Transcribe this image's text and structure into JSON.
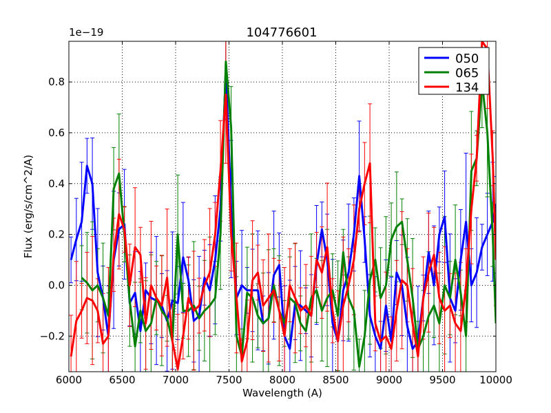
{
  "chart_data": {
    "type": "line",
    "title": "104776601",
    "xlabel": "Wavelength (A)",
    "ylabel": "Flux (erg/s/cm^2/A)",
    "offset_label": "1e−19",
    "xlim": [
      6000,
      10000
    ],
    "ylim": [
      -0.34,
      0.96
    ],
    "grid": true,
    "legend_position": "top-right",
    "x_ticks": [
      6000,
      6500,
      7000,
      7500,
      8000,
      8500,
      9000,
      9500,
      10000
    ],
    "x_tick_labels": [
      "6000",
      "6500",
      "7000",
      "7500",
      "8000",
      "8500",
      "9000",
      "9500",
      "10000"
    ],
    "y_ticks": [
      -0.2,
      0.0,
      0.2,
      0.4,
      0.6,
      0.8
    ],
    "y_tick_labels": [
      "−0.2",
      "0.0",
      "0.2",
      "0.4",
      "0.6",
      "0.8"
    ],
    "series": [
      {
        "name": "050",
        "color": "#0000ff",
        "x": [
          6020,
          6070,
          6120,
          6170,
          6220,
          6270,
          6320,
          6370,
          6420,
          6470,
          6520,
          6570,
          6620,
          6670,
          6720,
          6770,
          6820,
          6870,
          6920,
          6970,
          7020,
          7070,
          7120,
          7170,
          7220,
          7270,
          7320,
          7370,
          7420,
          7470,
          7520,
          7570,
          7620,
          7670,
          7720,
          7770,
          7820,
          7870,
          7920,
          7970,
          8020,
          8070,
          8120,
          8170,
          8220,
          8270,
          8320,
          8370,
          8420,
          8470,
          8520,
          8570,
          8620,
          8670,
          8720,
          8770,
          8820,
          8870,
          8920,
          8970,
          9020,
          9070,
          9120,
          9170,
          9220,
          9270,
          9320,
          9370,
          9420,
          9470,
          9520,
          9570,
          9620,
          9670,
          9720,
          9770,
          9820,
          9870,
          9920,
          9970,
          10000
        ],
        "values": [
          0.1,
          0.18,
          0.25,
          0.47,
          0.4,
          0.05,
          -0.05,
          -0.2,
          0.1,
          0.22,
          0.24,
          -0.07,
          -0.03,
          -0.18,
          -0.02,
          -0.05,
          -0.06,
          -0.08,
          -0.14,
          -0.06,
          -0.07,
          0.11,
          0.02,
          -0.14,
          -0.12,
          0.03,
          -0.02,
          0.1,
          0.3,
          0.85,
          0.3,
          -0.05,
          0.0,
          -0.02,
          -0.02,
          -0.02,
          -0.15,
          -0.13,
          0.04,
          0.08,
          -0.2,
          -0.25,
          -0.07,
          -0.08,
          -0.1,
          -0.12,
          0.08,
          0.22,
          0.1,
          -0.15,
          -0.22,
          -0.02,
          0.05,
          0.2,
          0.43,
          0.18,
          -0.12,
          -0.2,
          -0.25,
          -0.08,
          -0.22,
          0.05,
          0.0,
          -0.16,
          -0.25,
          -0.22,
          -0.05,
          0.13,
          0.0,
          0.2,
          0.27,
          -0.05,
          -0.1,
          0.1,
          0.25,
          0.0,
          0.05,
          0.15,
          0.2,
          0.25,
          0.32
        ]
      },
      {
        "name": "065",
        "color": "#008000",
        "x": [
          6120,
          6170,
          6220,
          6270,
          6320,
          6370,
          6420,
          6470,
          6520,
          6570,
          6620,
          6670,
          6720,
          6770,
          6820,
          6870,
          6920,
          6970,
          7020,
          7070,
          7120,
          7170,
          7220,
          7270,
          7320,
          7370,
          7420,
          7470,
          7520,
          7570,
          7620,
          7670,
          7720,
          7770,
          7820,
          7870,
          7920,
          7970,
          8020,
          8070,
          8120,
          8170,
          8220,
          8270,
          8320,
          8370,
          8420,
          8470,
          8520,
          8570,
          8620,
          8670,
          8720,
          8770,
          8820,
          8870,
          8920,
          8970,
          9020,
          9070,
          9120,
          9170,
          9220,
          9270,
          9320,
          9370,
          9420,
          9470,
          9520,
          9570,
          9620,
          9670,
          9720,
          9770,
          9820,
          9870,
          9920,
          9970,
          10000
        ],
        "values": [
          0.03,
          0.01,
          -0.02,
          0.0,
          -0.05,
          -0.12,
          0.38,
          0.44,
          0.2,
          -0.06,
          -0.24,
          -0.1,
          -0.18,
          -0.15,
          -0.05,
          -0.1,
          -0.13,
          -0.22,
          0.2,
          -0.1,
          -0.1,
          -0.08,
          -0.13,
          -0.1,
          -0.08,
          -0.05,
          0.2,
          0.88,
          0.62,
          -0.2,
          -0.28,
          -0.03,
          -0.05,
          -0.12,
          -0.15,
          -0.13,
          0.0,
          -0.1,
          -0.15,
          -0.05,
          -0.07,
          -0.15,
          -0.18,
          -0.05,
          -0.02,
          -0.1,
          -0.05,
          -0.02,
          -0.12,
          0.13,
          -0.05,
          -0.1,
          -0.32,
          -0.2,
          0.02,
          0.1,
          -0.05,
          0.0,
          0.18,
          0.23,
          0.25,
          0.1,
          -0.05,
          -0.25,
          -0.2,
          -0.12,
          -0.08,
          -0.15,
          0.0,
          -0.05,
          0.1,
          -0.03,
          -0.2,
          0.45,
          0.5,
          0.8,
          0.6,
          0.2,
          -0.15
        ]
      },
      {
        "name": "134",
        "color": "#ff0000",
        "x": [
          6020,
          6070,
          6120,
          6170,
          6220,
          6270,
          6320,
          6370,
          6420,
          6470,
          6520,
          6570,
          6620,
          6670,
          6720,
          6770,
          6820,
          6870,
          6920,
          6970,
          7020,
          7070,
          7120,
          7170,
          7220,
          7270,
          7320,
          7370,
          7420,
          7470,
          7520,
          7570,
          7620,
          7670,
          7720,
          7770,
          7820,
          7870,
          7920,
          7970,
          8020,
          8070,
          8120,
          8170,
          8220,
          8270,
          8320,
          8370,
          8420,
          8470,
          8520,
          8570,
          8620,
          8670,
          8720,
          8770,
          8820,
          8870,
          8920,
          8970,
          9020,
          9070,
          9120,
          9170,
          9220,
          9270,
          9320,
          9370,
          9420,
          9470,
          9520,
          9570,
          9620,
          9670,
          9720,
          9770,
          9820,
          9870,
          9920,
          9970,
          10000
        ],
        "values": [
          -0.28,
          -0.14,
          -0.1,
          -0.05,
          -0.06,
          -0.1,
          -0.23,
          -0.2,
          0.12,
          0.28,
          0.22,
          0.0,
          0.15,
          0.12,
          -0.15,
          0.0,
          -0.05,
          -0.08,
          0.03,
          -0.22,
          -0.33,
          -0.2,
          -0.05,
          -0.1,
          -0.08,
          0.0,
          0.05,
          0.2,
          0.45,
          0.75,
          0.2,
          -0.05,
          -0.3,
          -0.22,
          0.02,
          0.05,
          -0.08,
          -0.05,
          -0.02,
          -0.1,
          -0.2,
          0.0,
          -0.05,
          -0.1,
          -0.08,
          -0.12,
          0.1,
          0.05,
          0.15,
          -0.1,
          -0.22,
          -0.08,
          0.0,
          0.1,
          0.3,
          0.4,
          0.48,
          -0.15,
          -0.22,
          -0.2,
          -0.25,
          -0.1,
          0.02,
          0.0,
          -0.15,
          -0.28,
          -0.05,
          0.05,
          0.12,
          -0.05,
          -0.1,
          -0.08,
          -0.15,
          -0.18,
          0.0,
          0.3,
          0.5,
          0.96,
          0.93,
          0.5,
          0.1
        ]
      }
    ]
  }
}
